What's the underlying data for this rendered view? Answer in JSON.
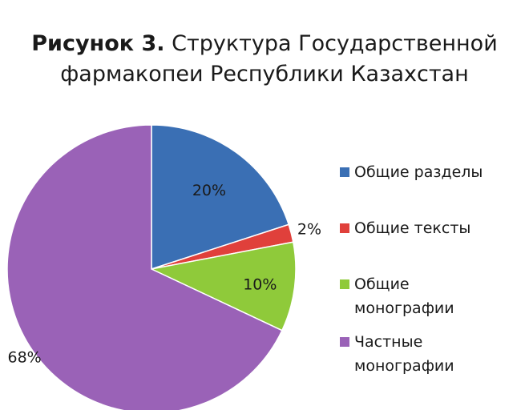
{
  "figure": {
    "title_lead": "Рисунок 3.",
    "title_rest": "Структура Государственной фармакопеи Республики Казахстан"
  },
  "chart_data": {
    "type": "pie",
    "title": "Рисунок 3. Структура Государственной фармакопеи Республики Казахстан",
    "legend_position": "right",
    "slices": [
      {
        "label": "Общие разделы",
        "value": 20,
        "display": "20%",
        "color": "#3a6fb4"
      },
      {
        "label": "Общие тексты",
        "value": 2,
        "display": "2%",
        "color": "#e0403b"
      },
      {
        "label": "Общие монографии",
        "value": 10,
        "display": "10%",
        "color": "#8fca3a"
      },
      {
        "label": "Частные монографии",
        "value": 68,
        "display": "68%",
        "color": "#9a62b7"
      }
    ]
  }
}
